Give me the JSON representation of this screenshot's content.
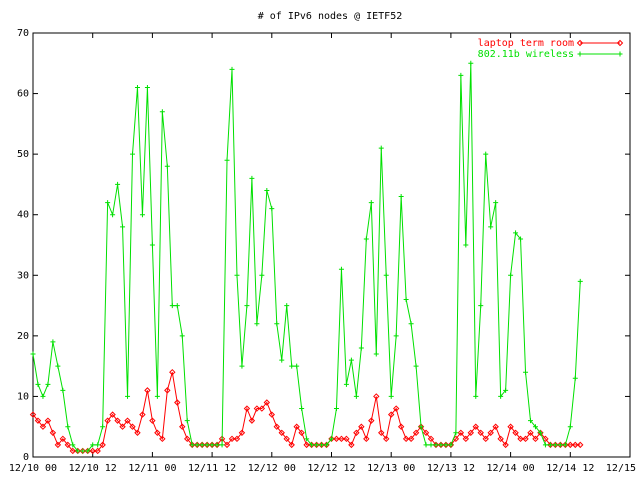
{
  "chart_data": {
    "type": "line",
    "title": "# of IPv6 nodes @ IETF52",
    "x": [
      0,
      1,
      2,
      3,
      4,
      5,
      6,
      7,
      8,
      9,
      10,
      11,
      12,
      13,
      14,
      15,
      16,
      17,
      18,
      19,
      20,
      21,
      22,
      23,
      24,
      25,
      26,
      27,
      28,
      29,
      30,
      31,
      32,
      33,
      34,
      35,
      36,
      37,
      38,
      39,
      40,
      41,
      42,
      43,
      44,
      45,
      46,
      47,
      48,
      49,
      50,
      51,
      52,
      53,
      54,
      55,
      56,
      57,
      58,
      59,
      60,
      61,
      62,
      63,
      64,
      65,
      66,
      67,
      68,
      69,
      70,
      71,
      72,
      73,
      74,
      75,
      76,
      77,
      78,
      79,
      80,
      81,
      82,
      83,
      84,
      85,
      86,
      87,
      88,
      89,
      90,
      91,
      92,
      93,
      94,
      95,
      96,
      97,
      98,
      99,
      100,
      101,
      102,
      103,
      104,
      105,
      106,
      107,
      108,
      109,
      110
    ],
    "series": [
      {
        "name": "laptop term room",
        "color": "#ff0000",
        "marker": "diamond",
        "values": [
          7,
          6,
          5,
          6,
          4,
          2,
          3,
          2,
          1,
          1,
          1,
          1,
          1,
          1,
          2,
          6,
          7,
          6,
          5,
          6,
          5,
          4,
          7,
          11,
          6,
          4,
          3,
          11,
          14,
          9,
          5,
          3,
          2,
          2,
          2,
          2,
          2,
          2,
          3,
          2,
          3,
          3,
          4,
          8,
          6,
          8,
          8,
          9,
          7,
          5,
          4,
          3,
          2,
          5,
          4,
          2,
          2,
          2,
          2,
          2,
          3,
          3,
          3,
          3,
          2,
          4,
          5,
          3,
          6,
          10,
          4,
          3,
          7,
          8,
          5,
          3,
          3,
          4,
          5,
          4,
          3,
          2,
          2,
          2,
          2,
          3,
          4,
          3,
          4,
          5,
          4,
          3,
          4,
          5,
          3,
          2,
          5,
          4,
          3,
          3,
          4,
          3,
          4,
          3,
          2,
          2,
          2,
          2,
          2,
          2,
          2
        ]
      },
      {
        "name": "802.11b wireless",
        "color": "#00e000",
        "marker": "plus",
        "values": [
          17,
          12,
          10,
          12,
          19,
          15,
          11,
          5,
          2,
          1,
          1,
          1,
          2,
          2,
          5,
          42,
          40,
          45,
          38,
          10,
          50,
          61,
          40,
          61,
          35,
          10,
          57,
          48,
          25,
          25,
          20,
          6,
          2,
          2,
          2,
          2,
          2,
          2,
          2,
          49,
          64,
          30,
          15,
          25,
          46,
          22,
          30,
          44,
          41,
          22,
          16,
          25,
          15,
          15,
          8,
          3,
          2,
          2,
          2,
          2,
          3,
          8,
          31,
          12,
          16,
          10,
          18,
          36,
          42,
          17,
          51,
          30,
          10,
          20,
          43,
          26,
          22,
          15,
          5,
          2,
          2,
          2,
          2,
          2,
          2,
          4,
          63,
          35,
          65,
          10,
          25,
          50,
          38,
          42,
          10,
          11,
          30,
          37,
          36,
          14,
          6,
          5,
          4,
          2,
          2,
          2,
          2,
          2,
          5,
          13,
          29
        ]
      }
    ],
    "xlim": [
      0,
      120
    ],
    "xticks": [
      {
        "value": 0,
        "label": "12/10 00"
      },
      {
        "value": 12,
        "label": "12/10 12"
      },
      {
        "value": 24,
        "label": "12/11 00"
      },
      {
        "value": 36,
        "label": "12/11 12"
      },
      {
        "value": 48,
        "label": "12/12 00"
      },
      {
        "value": 60,
        "label": "12/12 12"
      },
      {
        "value": 72,
        "label": "12/13 00"
      },
      {
        "value": 84,
        "label": "12/13 12"
      },
      {
        "value": 96,
        "label": "12/14 00"
      },
      {
        "value": 108,
        "label": "12/14 12"
      },
      {
        "value": 120,
        "label": "12/15 00"
      }
    ],
    "ylim": [
      0,
      70
    ],
    "yticks": [
      0,
      10,
      20,
      30,
      40,
      50,
      60,
      70
    ],
    "grid": false,
    "legend": "top-right"
  }
}
